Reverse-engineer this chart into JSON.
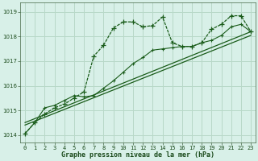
{
  "title": "Graphe pression niveau de la mer (hPa)",
  "bg_color": "#d8f0e8",
  "plot_bg_color": "#d8f0e8",
  "grid_color": "#b8d8c8",
  "line_color": "#1a5c1a",
  "x_ticks": [
    0,
    1,
    2,
    3,
    4,
    5,
    6,
    7,
    8,
    9,
    10,
    11,
    12,
    13,
    14,
    15,
    16,
    17,
    18,
    19,
    20,
    21,
    22,
    23
  ],
  "xlim": [
    -0.5,
    23.5
  ],
  "ylim": [
    1013.7,
    1019.4
  ],
  "yticks": [
    1014,
    1015,
    1016,
    1017,
    1018,
    1019
  ],
  "series1_x": [
    0,
    1,
    2,
    3,
    4,
    5,
    6,
    7,
    8,
    9,
    10,
    11,
    12,
    13,
    14,
    15,
    16,
    17,
    18,
    19,
    20,
    21,
    22,
    23
  ],
  "series1_y": [
    1014.05,
    1014.5,
    1014.85,
    1015.1,
    1015.25,
    1015.5,
    1015.75,
    1017.2,
    1017.65,
    1018.35,
    1018.6,
    1018.6,
    1018.4,
    1018.45,
    1018.8,
    1017.75,
    1017.6,
    1017.6,
    1017.75,
    1018.3,
    1018.5,
    1018.85,
    1018.85,
    1018.2
  ],
  "series2_x": [
    0,
    1,
    2,
    3,
    4,
    5,
    6,
    7,
    8,
    9,
    10,
    11,
    12,
    13,
    14,
    15,
    16,
    17,
    18,
    19,
    20,
    21,
    22,
    23
  ],
  "series2_y": [
    1014.05,
    1014.5,
    1015.1,
    1015.2,
    1015.4,
    1015.6,
    1015.55,
    1015.6,
    1015.9,
    1016.2,
    1016.55,
    1016.9,
    1017.15,
    1017.45,
    1017.5,
    1017.55,
    1017.6,
    1017.6,
    1017.75,
    1017.85,
    1018.05,
    1018.4,
    1018.5,
    1018.2
  ],
  "series3_x": [
    0,
    23
  ],
  "series3_y": [
    1014.4,
    1018.05
  ],
  "series4_x": [
    0,
    23
  ],
  "series4_y": [
    1014.5,
    1018.2
  ],
  "label_fontsize": 5.5,
  "tick_fontsize": 5,
  "xlabel_fontsize": 6
}
